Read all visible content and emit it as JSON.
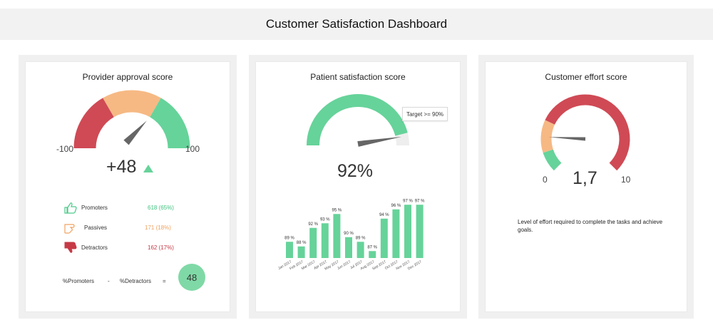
{
  "header": {
    "title": "Customer Satisfaction Dashboard"
  },
  "colors": {
    "green": "#66d39a",
    "orange": "#f6b984",
    "red": "#cf4a55",
    "grey_track": "#eeeeee",
    "needle": "#666666"
  },
  "provider": {
    "title": "Provider approval score",
    "min_label": "-100",
    "max_label": "100",
    "score": "+48",
    "trend_icon": "triangle-up-icon",
    "gauge_value": 48,
    "legend": [
      {
        "icon": "thumbs-up-icon",
        "label": "Promoters",
        "value": "618 (65%)",
        "color": "#3fc47f"
      },
      {
        "icon": "pointing-hand-icon",
        "label": "Passives",
        "value": "171 (18%)",
        "color": "#f1a25f"
      },
      {
        "icon": "thumbs-down-icon",
        "label": "Detractors",
        "value": "162 (17%)",
        "color": "#c63a46"
      }
    ],
    "formula": {
      "left": "%Promoters",
      "minus": "-",
      "right": "%Detractors",
      "equals": "=",
      "result": "48"
    }
  },
  "patient": {
    "title": "Patient satisfaction score",
    "percent": "92%",
    "target_label": "Target >=  90%",
    "gauge_fraction": 0.92,
    "target_fraction": 0.9
  },
  "effort": {
    "title": "Customer effort score",
    "min_label": "0",
    "max_label": "10",
    "value_label": "1,7",
    "value": 1.7,
    "description": "Level of effort required to complete the tasks and achieve goals."
  },
  "chart_data": {
    "type": "bar",
    "categories": [
      "Jan 2017",
      "Feb 2017",
      "Mar 2017",
      "Apr 2017",
      "May 2017",
      "Jun 2017",
      "Jul 2017",
      "Aug 2017",
      "Sep 2017",
      "Oct 2017",
      "Nov 2017",
      "Dec 2017"
    ],
    "values": [
      89,
      88,
      92,
      93,
      95,
      90,
      89,
      87,
      94,
      96,
      97,
      97
    ],
    "value_labels": [
      "89 %",
      "88 %",
      "92 %",
      "93 %",
      "95 %",
      "90 %",
      "89 %",
      "87 %",
      "94 %",
      "96 %",
      "97 %",
      "97 %"
    ],
    "ylim": [
      85.5,
      97.5
    ],
    "color": "#66d39a",
    "grid": false
  }
}
